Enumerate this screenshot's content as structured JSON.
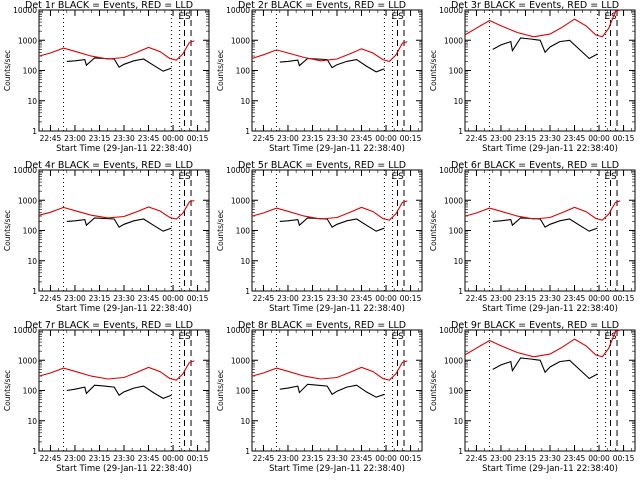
{
  "figure": {
    "xlabel_common": "Start Time (29-Jan-11 22:38:40)",
    "ylabel_common": "Counts/sec"
  },
  "colors": {
    "events": "#000000",
    "lld": "#e00000",
    "axes": "#000000"
  },
  "chart_data": [
    {
      "type": "line",
      "title": "Det 1r BLACK = Events, RED = LLD",
      "xlabel": "Start Time (29-Jan-11 22:38:40)",
      "ylabel": "Counts/sec",
      "yscale": "log",
      "ylim": [
        1,
        10000
      ],
      "xticks": [
        "22:45",
        "23:00",
        "23:15",
        "23:30",
        "23:45",
        "00:00",
        "00:15"
      ],
      "yticks": [
        "1",
        "10",
        "100",
        "1000",
        "10000"
      ],
      "vlines_dotted": [
        "22:53",
        "23:59",
        "00:04"
      ],
      "vlines_dashed": [
        "00:07",
        "00:11"
      ],
      "corner_markers": [
        "E",
        "S"
      ],
      "series": [
        {
          "name": "Events",
          "x": [
            "22:55",
            "23:00",
            "23:06",
            "23:07",
            "23:12",
            "23:18",
            "23:24",
            "23:27",
            "23:30",
            "23:36",
            "23:42",
            "23:48",
            "23:54",
            "23:59"
          ],
          "y": [
            200,
            210,
            230,
            150,
            260,
            250,
            240,
            130,
            160,
            210,
            240,
            150,
            95,
            120
          ]
        },
        {
          "name": "LLD",
          "x": [
            "22:38",
            "22:45",
            "22:53",
            "23:00",
            "23:10",
            "23:20",
            "23:30",
            "23:38",
            "23:45",
            "23:52",
            "23:58",
            "00:02",
            "00:06",
            "00:10",
            "00:13"
          ],
          "y": [
            300,
            380,
            550,
            430,
            300,
            240,
            270,
            400,
            580,
            420,
            250,
            220,
            350,
            850,
            950
          ]
        }
      ]
    },
    {
      "type": "line",
      "title": "Det 2r BLACK = Events, RED = LLD",
      "xlabel": "Start Time (29-Jan-11 22:38:40)",
      "ylabel": "Counts/sec",
      "yscale": "log",
      "ylim": [
        1,
        10000
      ],
      "xticks": [
        "22:45",
        "23:00",
        "23:15",
        "23:30",
        "23:45",
        "00:00",
        "00:15"
      ],
      "yticks": [
        "1",
        "10",
        "100",
        "1000",
        "10000"
      ],
      "vlines_dotted": [
        "22:53",
        "23:59",
        "00:04"
      ],
      "vlines_dashed": [
        "00:07",
        "00:11"
      ],
      "corner_markers": [
        "E",
        "S"
      ],
      "series": [
        {
          "name": "Events",
          "x": [
            "22:55",
            "23:00",
            "23:06",
            "23:07",
            "23:12",
            "23:18",
            "23:24",
            "23:27",
            "23:30",
            "23:36",
            "23:42",
            "23:48",
            "23:54",
            "23:59"
          ],
          "y": [
            190,
            200,
            220,
            145,
            250,
            240,
            230,
            125,
            155,
            200,
            230,
            140,
            90,
            115
          ]
        },
        {
          "name": "LLD",
          "x": [
            "22:38",
            "22:45",
            "22:53",
            "23:00",
            "23:10",
            "23:20",
            "23:30",
            "23:38",
            "23:45",
            "23:52",
            "23:58",
            "00:02",
            "00:06",
            "00:10",
            "00:13"
          ],
          "y": [
            250,
            330,
            480,
            380,
            270,
            210,
            240,
            360,
            520,
            380,
            230,
            200,
            320,
            800,
            900
          ]
        }
      ]
    },
    {
      "type": "line",
      "title": "Det 3r BLACK = Events, RED = LLD",
      "xlabel": "Start Time (29-Jan-11 22:38:40)",
      "ylabel": "Counts/sec",
      "yscale": "log",
      "ylim": [
        1,
        10000
      ],
      "xticks": [
        "22:45",
        "23:00",
        "23:15",
        "23:30",
        "23:45",
        "00:00",
        "00:15"
      ],
      "yticks": [
        "1",
        "10",
        "100",
        "1000",
        "10000"
      ],
      "vlines_dotted": [
        "22:53",
        "23:59",
        "00:04"
      ],
      "vlines_dashed": [
        "00:07",
        "00:11"
      ],
      "corner_markers": [
        "E",
        "S"
      ],
      "series": [
        {
          "name": "Events",
          "x": [
            "22:55",
            "23:00",
            "23:06",
            "23:07",
            "23:12",
            "23:18",
            "23:24",
            "23:27",
            "23:30",
            "23:36",
            "23:42",
            "23:48",
            "23:54",
            "23:59"
          ],
          "y": [
            500,
            700,
            900,
            450,
            1200,
            1100,
            1000,
            400,
            600,
            900,
            1000,
            500,
            250,
            350
          ]
        },
        {
          "name": "LLD",
          "x": [
            "22:38",
            "22:45",
            "22:53",
            "23:00",
            "23:10",
            "23:20",
            "23:30",
            "23:38",
            "23:45",
            "23:52",
            "23:58",
            "00:02",
            "00:06",
            "00:10",
            "00:13"
          ],
          "y": [
            1500,
            2500,
            4500,
            3000,
            1800,
            1300,
            1600,
            2800,
            5000,
            3000,
            1500,
            1300,
            2500,
            9000,
            10000
          ]
        }
      ]
    },
    {
      "type": "line",
      "title": "Det 4r BLACK = Events, RED = LLD",
      "xlabel": "Start Time (29-Jan-11 22:38:40)",
      "ylabel": "Counts/sec",
      "yscale": "log",
      "ylim": [
        1,
        10000
      ],
      "xticks": [
        "22:45",
        "23:00",
        "23:15",
        "23:30",
        "23:45",
        "00:00",
        "00:15"
      ],
      "yticks": [
        "1",
        "10",
        "100",
        "1000",
        "10000"
      ],
      "vlines_dotted": [
        "22:53",
        "23:59",
        "00:04"
      ],
      "vlines_dashed": [
        "00:07",
        "00:11"
      ],
      "corner_markers": [
        "E",
        "S"
      ],
      "series": [
        {
          "name": "Events",
          "x": [
            "22:55",
            "23:00",
            "23:06",
            "23:07",
            "23:12",
            "23:18",
            "23:24",
            "23:27",
            "23:30",
            "23:36",
            "23:42",
            "23:48",
            "23:54",
            "23:59"
          ],
          "y": [
            200,
            210,
            230,
            150,
            260,
            250,
            240,
            130,
            160,
            210,
            240,
            150,
            95,
            120
          ]
        },
        {
          "name": "LLD",
          "x": [
            "22:38",
            "22:45",
            "22:53",
            "23:00",
            "23:10",
            "23:20",
            "23:30",
            "23:38",
            "23:45",
            "23:52",
            "23:58",
            "00:02",
            "00:06",
            "00:10",
            "00:13"
          ],
          "y": [
            320,
            400,
            580,
            450,
            320,
            260,
            290,
            420,
            600,
            440,
            270,
            240,
            370,
            880,
            980
          ]
        }
      ]
    },
    {
      "type": "line",
      "title": "Det 5r BLACK = Events, RED = LLD",
      "xlabel": "Start Time (29-Jan-11 22:38:40)",
      "ylabel": "Counts/sec",
      "yscale": "log",
      "ylim": [
        1,
        10000
      ],
      "xticks": [
        "22:45",
        "23:00",
        "23:15",
        "23:30",
        "23:45",
        "00:00",
        "00:15"
      ],
      "yticks": [
        "1",
        "10",
        "100",
        "1000",
        "10000"
      ],
      "vlines_dotted": [
        "22:53",
        "23:59",
        "00:04"
      ],
      "vlines_dashed": [
        "00:07",
        "00:11"
      ],
      "corner_markers": [
        "E",
        "S"
      ],
      "series": [
        {
          "name": "Events",
          "x": [
            "22:55",
            "23:00",
            "23:06",
            "23:07",
            "23:12",
            "23:18",
            "23:24",
            "23:27",
            "23:30",
            "23:36",
            "23:42",
            "23:48",
            "23:54",
            "23:59"
          ],
          "y": [
            200,
            210,
            230,
            150,
            260,
            250,
            240,
            130,
            160,
            210,
            240,
            150,
            95,
            120
          ]
        },
        {
          "name": "LLD",
          "x": [
            "22:38",
            "22:45",
            "22:53",
            "23:00",
            "23:10",
            "23:20",
            "23:30",
            "23:38",
            "23:45",
            "23:52",
            "23:58",
            "00:02",
            "00:06",
            "00:10",
            "00:13"
          ],
          "y": [
            300,
            380,
            550,
            430,
            300,
            240,
            270,
            400,
            580,
            420,
            250,
            220,
            350,
            850,
            950
          ]
        }
      ]
    },
    {
      "type": "line",
      "title": "Det 6r BLACK = Events, RED = LLD",
      "xlabel": "Start Time (29-Jan-11 22:38:40)",
      "ylabel": "Counts/sec",
      "yscale": "log",
      "ylim": [
        1,
        10000
      ],
      "xticks": [
        "22:45",
        "23:00",
        "23:15",
        "23:30",
        "23:45",
        "00:00",
        "00:15"
      ],
      "yticks": [
        "1",
        "10",
        "100",
        "1000",
        "10000"
      ],
      "vlines_dotted": [
        "22:53",
        "23:59",
        "00:04"
      ],
      "vlines_dashed": [
        "00:07",
        "00:11"
      ],
      "corner_markers": [
        "E",
        "S"
      ],
      "series": [
        {
          "name": "Events",
          "x": [
            "22:55",
            "23:00",
            "23:06",
            "23:07",
            "23:12",
            "23:18",
            "23:24",
            "23:27",
            "23:30",
            "23:36",
            "23:42",
            "23:48",
            "23:54",
            "23:59"
          ],
          "y": [
            200,
            210,
            230,
            150,
            260,
            250,
            240,
            130,
            160,
            210,
            240,
            150,
            95,
            120
          ]
        },
        {
          "name": "LLD",
          "x": [
            "22:38",
            "22:45",
            "22:53",
            "23:00",
            "23:10",
            "23:20",
            "23:30",
            "23:38",
            "23:45",
            "23:52",
            "23:58",
            "00:02",
            "00:06",
            "00:10",
            "00:13"
          ],
          "y": [
            300,
            380,
            550,
            430,
            300,
            240,
            270,
            400,
            580,
            420,
            250,
            220,
            350,
            850,
            950
          ]
        }
      ]
    },
    {
      "type": "line",
      "title": "Det 7r BLACK = Events, RED = LLD",
      "xlabel": "Start Time (29-Jan-11 22:38:40)",
      "ylabel": "Counts/sec",
      "yscale": "log",
      "ylim": [
        1,
        10000
      ],
      "xticks": [
        "22:45",
        "23:00",
        "23:15",
        "23:30",
        "23:45",
        "00:00",
        "00:15"
      ],
      "yticks": [
        "1",
        "10",
        "100",
        "1000",
        "10000"
      ],
      "vlines_dotted": [
        "22:53",
        "23:59",
        "00:04"
      ],
      "vlines_dashed": [
        "00:07",
        "00:11"
      ],
      "corner_markers": [
        "E",
        "S"
      ],
      "series": [
        {
          "name": "Events",
          "x": [
            "22:55",
            "23:00",
            "23:06",
            "23:07",
            "23:12",
            "23:18",
            "23:24",
            "23:27",
            "23:30",
            "23:36",
            "23:42",
            "23:48",
            "23:54",
            "23:59"
          ],
          "y": [
            100,
            110,
            130,
            80,
            150,
            140,
            130,
            70,
            90,
            120,
            140,
            85,
            55,
            70
          ]
        },
        {
          "name": "LLD",
          "x": [
            "22:38",
            "22:45",
            "22:53",
            "23:00",
            "23:10",
            "23:20",
            "23:30",
            "23:38",
            "23:45",
            "23:52",
            "23:58",
            "00:02",
            "00:06",
            "00:10",
            "00:13"
          ],
          "y": [
            300,
            380,
            550,
            430,
            300,
            240,
            270,
            400,
            580,
            420,
            250,
            220,
            350,
            850,
            950
          ]
        }
      ]
    },
    {
      "type": "line",
      "title": "Det 8r BLACK = Events, RED = LLD",
      "xlabel": "Start Time (29-Jan-11 22:38:40)",
      "ylabel": "Counts/sec",
      "yscale": "log",
      "ylim": [
        1,
        10000
      ],
      "xticks": [
        "22:45",
        "23:00",
        "23:15",
        "23:30",
        "23:45",
        "00:00",
        "00:15"
      ],
      "yticks": [
        "1",
        "10",
        "100",
        "1000",
        "10000"
      ],
      "vlines_dotted": [
        "22:53",
        "23:59",
        "00:04"
      ],
      "vlines_dashed": [
        "00:07",
        "00:11"
      ],
      "corner_markers": [
        "E",
        "S"
      ],
      "series": [
        {
          "name": "Events",
          "x": [
            "22:55",
            "23:00",
            "23:06",
            "23:07",
            "23:12",
            "23:18",
            "23:24",
            "23:27",
            "23:30",
            "23:36",
            "23:42",
            "23:48",
            "23:54",
            "23:59"
          ],
          "y": [
            110,
            120,
            140,
            85,
            160,
            150,
            140,
            75,
            95,
            130,
            150,
            90,
            60,
            75
          ]
        },
        {
          "name": "LLD",
          "x": [
            "22:38",
            "22:45",
            "22:53",
            "23:00",
            "23:10",
            "23:20",
            "23:30",
            "23:38",
            "23:45",
            "23:52",
            "23:58",
            "00:02",
            "00:06",
            "00:10",
            "00:13"
          ],
          "y": [
            300,
            380,
            550,
            430,
            300,
            240,
            270,
            400,
            580,
            420,
            250,
            220,
            350,
            850,
            950
          ]
        }
      ]
    },
    {
      "type": "line",
      "title": "Det 9r BLACK = Events, RED = LLD",
      "xlabel": "Start Time (29-Jan-11 22:38:40)",
      "ylabel": "Counts/sec",
      "yscale": "log",
      "ylim": [
        1,
        10000
      ],
      "xticks": [
        "22:45",
        "23:00",
        "23:15",
        "23:30",
        "23:45",
        "00:00",
        "00:15"
      ],
      "yticks": [
        "1",
        "10",
        "100",
        "1000",
        "10000"
      ],
      "vlines_dotted": [
        "22:53",
        "23:59",
        "00:04"
      ],
      "vlines_dashed": [
        "00:07",
        "00:11"
      ],
      "corner_markers": [
        "E",
        "S"
      ],
      "series": [
        {
          "name": "Events",
          "x": [
            "22:55",
            "23:00",
            "23:06",
            "23:07",
            "23:12",
            "23:18",
            "23:24",
            "23:27",
            "23:30",
            "23:36",
            "23:42",
            "23:48",
            "23:54",
            "23:59"
          ],
          "y": [
            500,
            700,
            900,
            450,
            1200,
            1100,
            1000,
            400,
            600,
            900,
            1000,
            500,
            250,
            350
          ]
        },
        {
          "name": "LLD",
          "x": [
            "22:38",
            "22:45",
            "22:53",
            "23:00",
            "23:10",
            "23:20",
            "23:30",
            "23:38",
            "23:45",
            "23:52",
            "23:58",
            "00:02",
            "00:06",
            "00:10",
            "00:13"
          ],
          "y": [
            1500,
            2500,
            4500,
            3000,
            1800,
            1300,
            1600,
            2800,
            5000,
            3000,
            1500,
            1300,
            2500,
            9000,
            10000
          ]
        }
      ]
    }
  ]
}
